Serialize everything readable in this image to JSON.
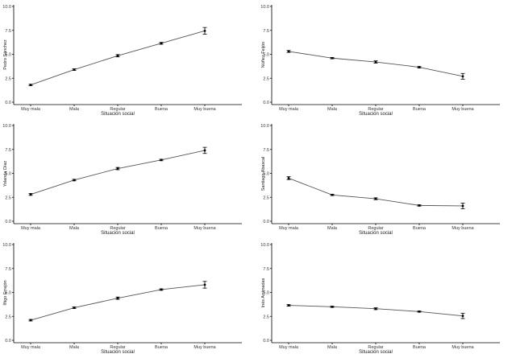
{
  "chart_data": [
    {
      "type": "line",
      "categories": [
        "Muy mala",
        "Mala",
        "Regular",
        "Buena",
        "Muy buena"
      ],
      "yticks": [
        "0.0",
        "2.5",
        "5.0",
        "7.5",
        "10.0"
      ],
      "ylim": [
        0,
        10
      ],
      "xlabel": "Situación social",
      "ylabel": "Pedro Sánchez",
      "series": [
        {
          "values": [
            1.8,
            3.4,
            4.85,
            6.15,
            7.45
          ],
          "error": [
            0.07,
            0.08,
            0.12,
            0.1,
            0.35
          ]
        }
      ]
    },
    {
      "type": "line",
      "categories": [
        "Muy mala",
        "Mala",
        "Regular",
        "Buena",
        "Muy buena"
      ],
      "yticks": [
        "0.0",
        "2.5",
        "5.0",
        "7.5",
        "10.0"
      ],
      "ylim": [
        0,
        10
      ],
      "xlabel": "Situación social",
      "ylabel": "Núñez Feijóo",
      "series": [
        {
          "values": [
            5.3,
            4.6,
            4.2,
            3.65,
            2.7
          ],
          "error": [
            0.1,
            0.07,
            0.12,
            0.08,
            0.3
          ]
        }
      ]
    },
    {
      "type": "line",
      "categories": [
        "Muy mala",
        "Mala",
        "Regular",
        "Buena",
        "Muy buena"
      ],
      "yticks": [
        "0.0",
        "2.5",
        "5.0",
        "7.5",
        "10.0"
      ],
      "ylim": [
        0,
        10
      ],
      "xlabel": "Situación social",
      "ylabel": "Yolanda Díaz",
      "series": [
        {
          "values": [
            2.8,
            4.3,
            5.5,
            6.4,
            7.4
          ],
          "error": [
            0.1,
            0.08,
            0.12,
            0.08,
            0.32
          ]
        }
      ]
    },
    {
      "type": "line",
      "categories": [
        "Muy mala",
        "Mala",
        "Regular",
        "Buena",
        "Muy buena"
      ],
      "yticks": [
        "0.0",
        "2.5",
        "5.0",
        "7.5",
        "10.0"
      ],
      "ylim": [
        0,
        10
      ],
      "xlabel": "Situación social",
      "ylabel": "Santiago Abascal",
      "series": [
        {
          "values": [
            4.5,
            2.75,
            2.35,
            1.65,
            1.6
          ],
          "error": [
            0.15,
            0.07,
            0.1,
            0.07,
            0.3
          ]
        }
      ]
    },
    {
      "type": "line",
      "categories": [
        "Muy mala",
        "Mala",
        "Regular",
        "Buena",
        "Muy buena"
      ],
      "yticks": [
        "0.0",
        "2.5",
        "5.0",
        "7.5",
        "10.0"
      ],
      "ylim": [
        0,
        10
      ],
      "xlabel": "Situación social",
      "ylabel": "Íñigo Errejón",
      "series": [
        {
          "values": [
            2.1,
            3.4,
            4.4,
            5.3,
            5.8
          ],
          "error": [
            0.08,
            0.08,
            0.12,
            0.08,
            0.35
          ]
        }
      ]
    },
    {
      "type": "line",
      "categories": [
        "Muy mala",
        "Mala",
        "Regular",
        "Buena",
        "Muy buena"
      ],
      "yticks": [
        "0.0",
        "2.5",
        "5.0",
        "7.5",
        "10.0"
      ],
      "ylim": [
        0,
        10
      ],
      "xlabel": "Situación social",
      "ylabel": "Inés Arrimadas",
      "series": [
        {
          "values": [
            3.65,
            3.5,
            3.3,
            3.0,
            2.55
          ],
          "error": [
            0.08,
            0.06,
            0.1,
            0.06,
            0.28
          ]
        }
      ]
    }
  ]
}
